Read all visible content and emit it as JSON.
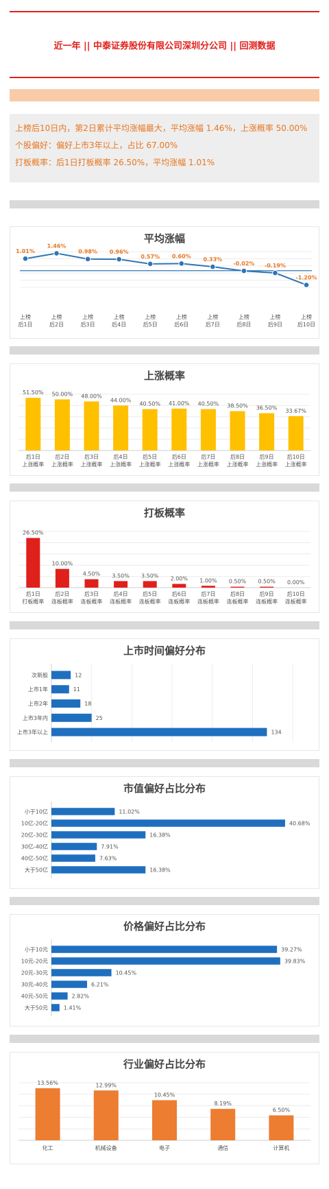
{
  "header": {
    "title": "近一年 || 中泰证券股份有限公司深圳分公司 || 回测数据"
  },
  "summary": {
    "line1": "上榜后10日内，第2日累计平均涨幅最大，平均涨幅 1.46%，上涨概率 50.00%",
    "line2": "个股偏好：偏好上市3年以上，占比 67.00%",
    "line3": "打板概率：后1日打板概率 26.50%，平均涨幅 1.01%"
  },
  "colors": {
    "accent_red": "#e0201b",
    "orange_text": "#e87722",
    "line_blue": "#2e75b6",
    "bar_yellow": "#ffc000",
    "bar_red": "#e0201b",
    "bar_blue": "#1f6fbf",
    "bar_orange": "#ed7d31"
  },
  "chart_data": [
    {
      "type": "line",
      "title": "平均涨幅",
      "categories": [
        "上榜\n后1日",
        "上榜\n后2日",
        "上榜\n后3日",
        "上榜\n后4日",
        "上榜\n后5日",
        "上榜\n后6日",
        "上榜\n后7日",
        "上榜\n后8日",
        "上榜\n后9日",
        "上榜\n后10日"
      ],
      "values": [
        1.01,
        1.46,
        0.98,
        0.96,
        0.57,
        0.6,
        0.33,
        -0.02,
        -0.19,
        -1.2
      ],
      "data_labels": [
        "1.01%",
        "1.46%",
        "0.98%",
        "0.96%",
        "0.57%",
        "0.60%",
        "0.33%",
        "-0.02%",
        "-0.19%",
        "-1.20%"
      ],
      "ylim": [
        -1.4,
        1.6
      ],
      "grid": true
    },
    {
      "type": "bar",
      "title": "上涨概率",
      "categories": [
        "后1日\n上涨概率",
        "后2日\n上涨概率",
        "后3日\n上涨概率",
        "后4日\n上涨概率",
        "后5日\n上涨概率",
        "后6日\n上涨概率",
        "后7日\n上涨概率",
        "后8日\n上涨概率",
        "后9日\n上涨概率",
        "后10日\n上涨概率"
      ],
      "values": [
        51.5,
        50.0,
        48.0,
        44.0,
        40.5,
        41.0,
        40.5,
        38.5,
        36.5,
        33.67
      ],
      "data_labels": [
        "51.50%",
        "50.00%",
        "48.00%",
        "44.00%",
        "40.50%",
        "41.00%",
        "40.50%",
        "38.50%",
        "36.50%",
        "33.67%"
      ],
      "ylim": [
        0,
        55
      ],
      "grid": true
    },
    {
      "type": "bar",
      "title": "打板概率",
      "categories": [
        "后1日\n打板概率",
        "后2日\n连板概率",
        "后3日\n连板概率",
        "后4日\n连板概率",
        "后5日\n连板概率",
        "后6日\n连板概率",
        "后7日\n连板概率",
        "后8日\n连板概率",
        "后9日\n连板概率",
        "后10日\n连板概率"
      ],
      "values": [
        26.5,
        10.0,
        4.5,
        3.5,
        3.5,
        2.0,
        1.0,
        0.5,
        0.5,
        0.0
      ],
      "data_labels": [
        "26.50%",
        "10.00%",
        "4.50%",
        "3.50%",
        "3.50%",
        "2.00%",
        "1.00%",
        "0.50%",
        "0.50%",
        "0.00%"
      ],
      "ylim": [
        0,
        30
      ],
      "grid": true
    },
    {
      "type": "bar",
      "orientation": "horizontal",
      "title": "上市时间偏好分布",
      "categories": [
        "次新股",
        "上市1年",
        "上市2年",
        "上市3年内",
        "上市3年以上"
      ],
      "values": [
        12,
        11,
        18,
        25,
        134
      ],
      "data_labels": [
        "12",
        "11",
        "18",
        "25",
        "134"
      ],
      "xlim": [
        0,
        150
      ],
      "grid": true
    },
    {
      "type": "bar",
      "orientation": "horizontal",
      "title": "市值偏好占比分布",
      "categories": [
        "小于10亿",
        "10亿-20亿",
        "20亿-30亿",
        "30亿-40亿",
        "40亿-50亿",
        "大于50亿"
      ],
      "values": [
        11.02,
        40.68,
        16.38,
        7.91,
        7.63,
        16.38
      ],
      "data_labels": [
        "11.02%",
        "40.68%",
        "16.38%",
        "7.91%",
        "7.63%",
        "16.38%"
      ],
      "xlim": [
        0,
        42
      ],
      "grid": false
    },
    {
      "type": "bar",
      "orientation": "horizontal",
      "title": "价格偏好占比分布",
      "categories": [
        "小于10元",
        "10元-20元",
        "20元-30元",
        "30元-40元",
        "40元-50元",
        "大于50元"
      ],
      "values": [
        39.27,
        39.83,
        10.45,
        6.21,
        2.82,
        1.41
      ],
      "data_labels": [
        "39.27%",
        "39.83%",
        "10.45%",
        "6.21%",
        "2.82%",
        "1.41%"
      ],
      "xlim": [
        0,
        42
      ],
      "grid": false
    },
    {
      "type": "bar",
      "title": "行业偏好占比分布",
      "categories": [
        "化工",
        "机械设备",
        "电子",
        "通信",
        "计算机"
      ],
      "values": [
        13.56,
        12.99,
        10.45,
        8.19,
        6.5
      ],
      "data_labels": [
        "13.56%",
        "12.99%",
        "10.45%",
        "8.19%",
        "6.50%"
      ],
      "ylim": [
        0,
        15
      ],
      "grid": true
    }
  ]
}
